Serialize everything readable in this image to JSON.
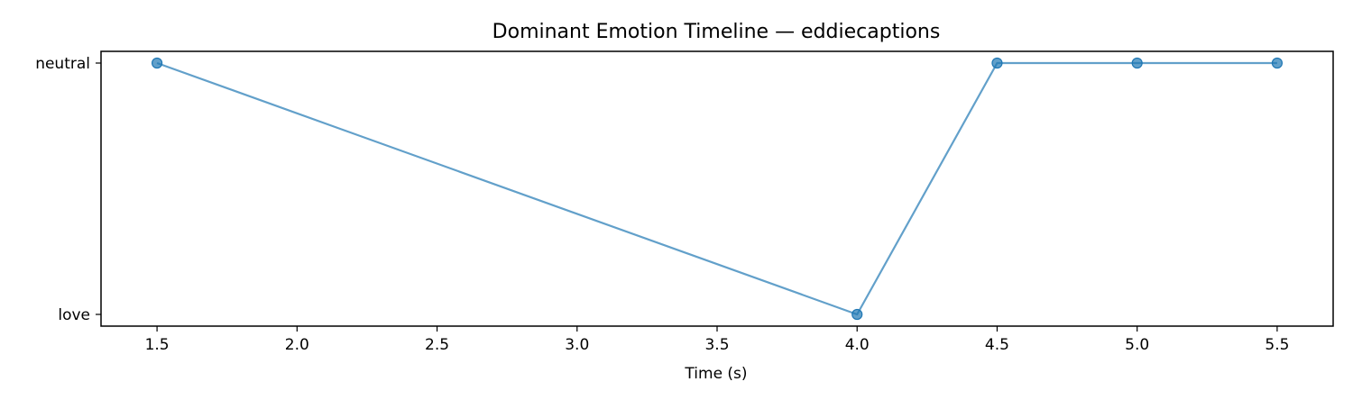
{
  "chart_data": {
    "type": "line",
    "title": "Dominant Emotion Timeline — eddiecaptions",
    "xlabel": "Time (s)",
    "ylabel": "",
    "x": [
      1.5,
      4.0,
      4.5,
      5.0,
      5.5
    ],
    "y_categories": [
      "love",
      "neutral"
    ],
    "series": [
      {
        "values": [
          "neutral",
          "love",
          "neutral",
          "neutral",
          "neutral"
        ],
        "color": "#1f77b4"
      }
    ],
    "xlim": [
      1.3,
      5.7
    ],
    "x_ticks": [
      "1.5",
      "2.0",
      "2.5",
      "3.0",
      "3.5",
      "4.0",
      "4.5",
      "5.0",
      "5.5"
    ],
    "grid": false,
    "legend": "none",
    "markers": true
  }
}
